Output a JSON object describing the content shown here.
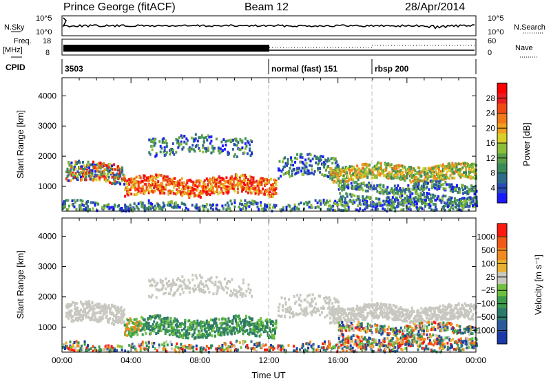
{
  "header": {
    "station": "Prince George (fitACF)",
    "beam": "Beam 12",
    "date": "28/Apr/2014"
  },
  "top_panels": {
    "nsky_label": "N.Sky",
    "nsky_ticks": [
      "10^5",
      "10^0"
    ],
    "nsearch_label": "N.Search",
    "nsearch_ticks": [
      "10^5",
      "10^0"
    ],
    "freq_label": "Freq.",
    "freq_unit": "[MHz]",
    "freq_ticks": [
      "18",
      "8"
    ],
    "nave_label": "Nave",
    "nave_ticks": [
      "60",
      "0"
    ],
    "cpid_label": "CPID",
    "cpid_segments": [
      {
        "text": "3503",
        "start_hour": 0
      },
      {
        "text": "normal (fast) 151",
        "start_hour": 12
      },
      {
        "text": "rbsp 200",
        "start_hour": 18
      }
    ]
  },
  "chart_data": [
    {
      "type": "heatmap",
      "title": "",
      "ylabel": "Slant Range [km]",
      "xlabel": "",
      "ylim": [
        180,
        4600
      ],
      "yticks": [
        1000,
        2000,
        3000,
        4000
      ],
      "xlim": [
        0,
        24
      ],
      "colorbar": {
        "label": "Power [dB]",
        "ticks": [
          "4",
          "8",
          "12",
          "16",
          "20",
          "24",
          "28"
        ],
        "colors": [
          "#1a1aff",
          "#2a4ab8",
          "#2e6b8a",
          "#3a8a5a",
          "#5aa04a",
          "#8cbd3a",
          "#d8cf2a",
          "#f0a020",
          "#f07a1a",
          "#f04a14",
          "#e81e1e",
          "#ff0000"
        ]
      }
    },
    {
      "type": "heatmap",
      "title": "",
      "ylabel": "Slant Range [km]",
      "xlabel": "Time UT",
      "ylim": [
        180,
        4600
      ],
      "yticks": [
        1000,
        2000,
        3000,
        4000
      ],
      "xlim": [
        0,
        24
      ],
      "xticks": [
        "00:00",
        "04:00",
        "08:00",
        "12:00",
        "16:00",
        "20:00",
        "00:00"
      ],
      "colorbar": {
        "label": "Velocity [m s⁻¹]",
        "ticks": [
          "1000",
          "500",
          "100",
          "25",
          "−25",
          "−100",
          "−500",
          "−1000"
        ],
        "colors": [
          "#1a3aa8",
          "#2a5a9a",
          "#2e7a6a",
          "#3a9a4a",
          "#70c040",
          "#c8c8c0",
          "#e8b030",
          "#f08a20",
          "#f05a18",
          "#ff1a10"
        ]
      }
    }
  ]
}
